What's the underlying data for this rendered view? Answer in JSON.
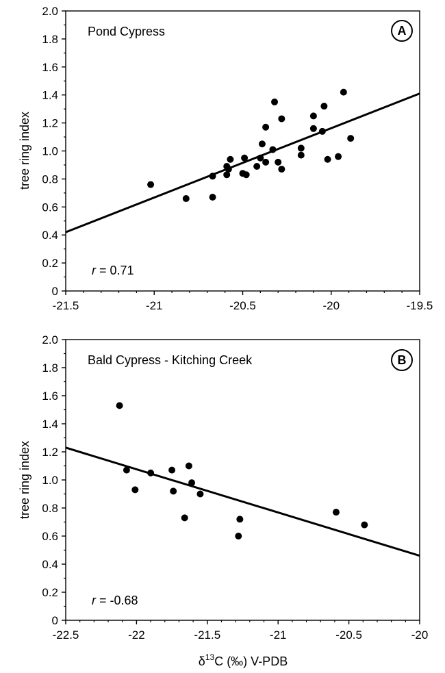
{
  "chart_data": [
    {
      "type": "scatter",
      "panel_letter": "A",
      "title": "Pond Cypress",
      "ylabel": "tree ring index",
      "xlabel": "",
      "xlim": [
        -21.5,
        -19.5
      ],
      "ylim": [
        0,
        2.0
      ],
      "x_ticks": [
        "-21.5",
        "-21",
        "-20.5",
        "-20",
        "-19.5"
      ],
      "y_ticks": [
        "0",
        "0.2",
        "0.4",
        "0.6",
        "0.8",
        "1.0",
        "1.2",
        "1.4",
        "1.6",
        "1.8",
        "2.0"
      ],
      "r_prefix": "r",
      "r_value": " = 0.71",
      "points": [
        [
          -21.02,
          0.76
        ],
        [
          -20.82,
          0.66
        ],
        [
          -20.67,
          0.82
        ],
        [
          -20.67,
          0.67
        ],
        [
          -20.59,
          0.89
        ],
        [
          -20.59,
          0.83
        ],
        [
          -20.57,
          0.94
        ],
        [
          -20.58,
          0.87
        ],
        [
          -20.5,
          0.84
        ],
        [
          -20.49,
          0.95
        ],
        [
          -20.48,
          0.83
        ],
        [
          -20.42,
          0.89
        ],
        [
          -20.4,
          0.95
        ],
        [
          -20.39,
          1.05
        ],
        [
          -20.37,
          1.17
        ],
        [
          -20.37,
          0.92
        ],
        [
          -20.33,
          1.01
        ],
        [
          -20.32,
          1.35
        ],
        [
          -20.3,
          0.92
        ],
        [
          -20.28,
          0.87
        ],
        [
          -20.28,
          1.23
        ],
        [
          -20.17,
          1.02
        ],
        [
          -20.17,
          0.97
        ],
        [
          -20.1,
          1.25
        ],
        [
          -20.1,
          1.16
        ],
        [
          -20.05,
          1.14
        ],
        [
          -20.04,
          1.32
        ],
        [
          -20.02,
          0.94
        ],
        [
          -19.96,
          0.96
        ],
        [
          -19.93,
          1.42
        ],
        [
          -19.89,
          1.09
        ]
      ],
      "regression": {
        "x": [
          -21.5,
          -19.5
        ],
        "y": [
          0.42,
          1.41
        ]
      }
    },
    {
      "type": "scatter",
      "panel_letter": "B",
      "title": "Bald Cypress - Kitching Creek",
      "ylabel": "tree ring index",
      "xlabel": "δ13C (‰) V-PDB",
      "xlim": [
        -22.5,
        -20
      ],
      "ylim": [
        0,
        2.0
      ],
      "x_ticks": [
        "-22.5",
        "-22",
        "-21.5",
        "-21",
        "-20.5",
        "-20"
      ],
      "y_ticks": [
        "0",
        "0.2",
        "0.4",
        "0.6",
        "0.8",
        "1.0",
        "1.2",
        "1.4",
        "1.6",
        "1.8",
        "2.0"
      ],
      "r_prefix": "r",
      "r_value": " = -0.68",
      "points": [
        [
          -22.12,
          1.53
        ],
        [
          -22.07,
          1.07
        ],
        [
          -22.01,
          0.93
        ],
        [
          -21.9,
          1.05
        ],
        [
          -21.75,
          1.07
        ],
        [
          -21.74,
          0.92
        ],
        [
          -21.66,
          0.73
        ],
        [
          -21.63,
          1.1
        ],
        [
          -21.61,
          0.98
        ],
        [
          -21.55,
          0.9
        ],
        [
          -21.27,
          0.72
        ],
        [
          -21.28,
          0.6
        ],
        [
          -20.59,
          0.77
        ],
        [
          -20.39,
          0.68
        ]
      ],
      "regression": {
        "x": [
          -22.5,
          -20
        ],
        "y": [
          1.23,
          0.46
        ]
      }
    }
  ],
  "xlabel_parts": {
    "delta": "δ",
    "superscript": "13",
    "rest": "C (‰) V-PDB"
  }
}
